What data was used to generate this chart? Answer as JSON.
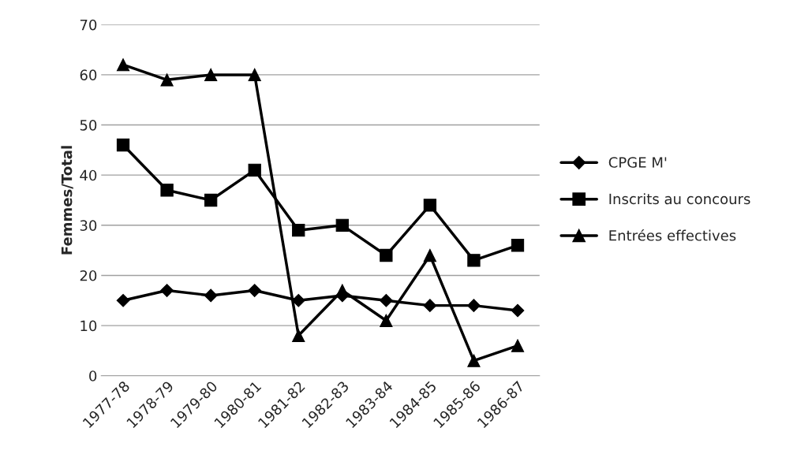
{
  "chart_data": {
    "type": "line",
    "ylabel": "Femmes/Total",
    "categories": [
      "1977-78",
      "1978-79",
      "1979-80",
      "1980-81",
      "1981-82",
      "1982-83",
      "1983-84",
      "1984-85",
      "1985-86",
      "1986-87"
    ],
    "series": [
      {
        "name": "CPGE M'",
        "color": "#000000",
        "marker": "diamond",
        "values": [
          15,
          17,
          16,
          17,
          15,
          16,
          15,
          14,
          14,
          13
        ]
      },
      {
        "name": "Inscrits au concours",
        "color": "#000000",
        "marker": "square",
        "values": [
          46,
          37,
          35,
          41,
          29,
          30,
          24,
          34,
          23,
          26
        ]
      },
      {
        "name": "Entrées effectives",
        "color": "#000000",
        "marker": "triangle",
        "values": [
          62,
          59,
          60,
          60,
          8,
          17,
          11,
          24,
          3,
          6
        ]
      }
    ],
    "ylim": [
      0,
      70
    ],
    "yticks": [
      0,
      10,
      20,
      30,
      40,
      50,
      60,
      70
    ],
    "grid": "y",
    "legend": "right",
    "line_style": "solid"
  }
}
